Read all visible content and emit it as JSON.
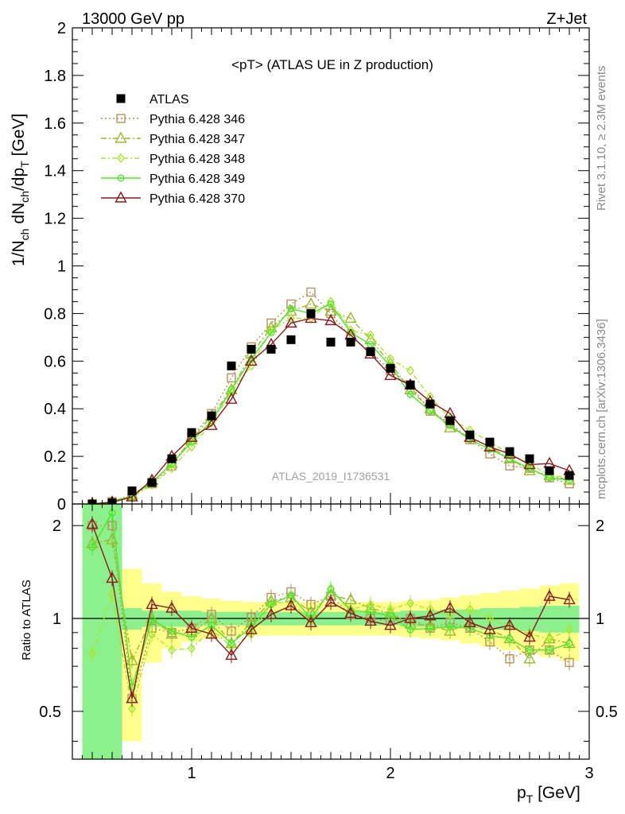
{
  "header": {
    "left": "13000 GeV pp",
    "right": "Z+Jet"
  },
  "side_text": {
    "top": "Rivet 3.1.10, ≥ 2.3M events",
    "bottom": "mcplots.cern.ch [arXiv:1306.3436]"
  },
  "chart_data": {
    "type": "line",
    "title": "<pT> (ATLAS UE in Z production)",
    "analysis_label": "ATLAS_2019_I1736531",
    "ylabel_main": "1/N_ch dN_ch/dp_T [GeV]",
    "ylabel_ratio": "Ratio to ATLAS",
    "xlabel": "p_T [GeV]",
    "xlim": [
      0.4,
      3.0
    ],
    "ylim": [
      0,
      2
    ],
    "ratio_ylim": [
      0.35,
      2.35
    ],
    "ratio_log": true,
    "xticks": [
      "1",
      "2",
      "3"
    ],
    "yticks_main": [
      "0",
      "0.2",
      "0.4",
      "0.6",
      "0.8",
      "1",
      "1.2",
      "1.4",
      "1.6",
      "1.8",
      "2"
    ],
    "yticks_ratio": [
      "0.5",
      "1",
      "2"
    ],
    "legend_placement": "top-left",
    "x": [
      0.5,
      0.6,
      0.7,
      0.8,
      0.9,
      1.0,
      1.1,
      1.2,
      1.3,
      1.4,
      1.5,
      1.6,
      1.7,
      1.8,
      1.9,
      2.0,
      2.1,
      2.2,
      2.3,
      2.4,
      2.5,
      2.6,
      2.7,
      2.8,
      2.9
    ],
    "data": {
      "name": "ATLAS",
      "color": "#000000",
      "values": [
        0.0,
        0.005,
        0.055,
        0.09,
        0.19,
        0.3,
        0.37,
        0.58,
        0.65,
        0.65,
        0.69,
        0.8,
        0.68,
        0.68,
        0.64,
        0.57,
        0.5,
        0.42,
        0.35,
        0.29,
        0.26,
        0.22,
        0.19,
        0.14,
        0.12
      ]
    },
    "series": [
      {
        "name": "Pythia 6.428 346",
        "color": "#b8915c",
        "marker": "open-square",
        "dash": "2,3",
        "values": [
          0.0,
          0.01,
          0.035,
          0.085,
          0.16,
          0.28,
          0.38,
          0.53,
          0.66,
          0.76,
          0.84,
          0.89,
          0.8,
          0.7,
          0.64,
          0.56,
          0.5,
          0.39,
          0.34,
          0.27,
          0.21,
          0.16,
          0.15,
          0.11,
          0.085
        ]
      },
      {
        "name": "Pythia 6.428 347",
        "color": "#9cb82a",
        "marker": "open-triangle",
        "dash": "7,3,2,3",
        "values": [
          0.0,
          0.009,
          0.04,
          0.09,
          0.17,
          0.27,
          0.37,
          0.48,
          0.63,
          0.74,
          0.81,
          0.84,
          0.81,
          0.78,
          0.69,
          0.59,
          0.48,
          0.4,
          0.32,
          0.28,
          0.24,
          0.19,
          0.14,
          0.12,
          0.1
        ]
      },
      {
        "name": "Pythia 6.428 348",
        "color": "#a6e82a",
        "marker": "open-diamond",
        "dash": "6,3,2,3",
        "values": [
          0.0,
          0.006,
          0.028,
          0.08,
          0.15,
          0.24,
          0.34,
          0.47,
          0.58,
          0.73,
          0.78,
          0.78,
          0.85,
          0.73,
          0.71,
          0.61,
          0.56,
          0.45,
          0.36,
          0.31,
          0.26,
          0.21,
          0.17,
          0.12,
          0.11
        ]
      },
      {
        "name": "Pythia 6.428 349",
        "color": "#4ee82a",
        "marker": "open-circle",
        "dash": "",
        "values": [
          0.0,
          0.01,
          0.033,
          0.09,
          0.17,
          0.26,
          0.35,
          0.48,
          0.61,
          0.72,
          0.82,
          0.8,
          0.84,
          0.72,
          0.67,
          0.58,
          0.46,
          0.39,
          0.33,
          0.27,
          0.23,
          0.19,
          0.15,
          0.11,
          0.1
        ]
      },
      {
        "name": "Pythia 6.428 370",
        "color": "#8b1a1a",
        "marker": "open-triangle",
        "dash": "",
        "values": [
          0.0,
          0.007,
          0.03,
          0.1,
          0.2,
          0.28,
          0.33,
          0.44,
          0.6,
          0.67,
          0.76,
          0.78,
          0.77,
          0.71,
          0.63,
          0.54,
          0.5,
          0.43,
          0.38,
          0.28,
          0.24,
          0.21,
          0.165,
          0.17,
          0.14
        ]
      }
    ],
    "ratios": [
      [
        2.0,
        2.0,
        0.55,
        0.93,
        0.9,
        0.93,
        1.03,
        0.91,
        1.01,
        1.17,
        1.22,
        1.11,
        1.18,
        1.03,
        1.0,
        0.98,
        1.0,
        0.93,
        0.97,
        0.93,
        0.84,
        0.74,
        0.79,
        0.79,
        0.72
      ],
      [
        1.75,
        1.8,
        0.73,
        1.0,
        0.89,
        0.9,
        1.0,
        0.83,
        0.97,
        1.14,
        1.17,
        1.05,
        1.19,
        1.15,
        1.08,
        1.04,
        0.96,
        0.95,
        0.91,
        0.97,
        0.92,
        0.86,
        0.74,
        0.86,
        0.83
      ],
      [
        0.77,
        1.2,
        0.51,
        0.89,
        0.79,
        0.8,
        0.92,
        0.81,
        0.89,
        1.12,
        1.13,
        0.98,
        1.25,
        1.07,
        1.11,
        1.07,
        1.12,
        1.07,
        1.03,
        1.07,
        1.0,
        0.95,
        0.89,
        0.86,
        0.92
      ],
      [
        1.7,
        2.2,
        0.6,
        0.99,
        0.91,
        0.87,
        0.95,
        0.83,
        0.94,
        1.11,
        1.19,
        1.0,
        1.24,
        1.06,
        1.05,
        1.02,
        0.92,
        0.93,
        0.94,
        0.93,
        0.88,
        0.86,
        0.79,
        0.79,
        0.83
      ],
      [
        2.02,
        1.35,
        0.55,
        1.11,
        1.08,
        0.93,
        0.89,
        0.76,
        0.92,
        1.03,
        1.1,
        0.97,
        1.13,
        1.04,
        0.98,
        0.95,
        1.0,
        1.02,
        1.08,
        0.97,
        0.92,
        0.95,
        0.87,
        1.18,
        1.15
      ]
    ],
    "band_x_edges": [
      0.45,
      0.55,
      0.65,
      0.75,
      0.85,
      0.95,
      1.05,
      1.15,
      1.25,
      1.35,
      1.45,
      1.55,
      1.65,
      1.75,
      1.85,
      1.95,
      2.05,
      2.15,
      2.25,
      2.35,
      2.45,
      2.55,
      2.65,
      2.75,
      2.85,
      2.95
    ],
    "band_stat": [
      2.35,
      2.35,
      1.08,
      1.06,
      1.06,
      1.06,
      1.05,
      1.05,
      1.05,
      1.05,
      1.05,
      1.05,
      1.05,
      1.05,
      1.05,
      1.05,
      1.06,
      1.06,
      1.07,
      1.07,
      1.08,
      1.08,
      1.09,
      1.1,
      1.1
    ],
    "band_stat_low": [
      0.35,
      0.35,
      0.92,
      0.94,
      0.94,
      0.94,
      0.95,
      0.95,
      0.95,
      0.95,
      0.95,
      0.95,
      0.95,
      0.95,
      0.95,
      0.95,
      0.94,
      0.94,
      0.93,
      0.93,
      0.92,
      0.92,
      0.91,
      0.9,
      0.9
    ],
    "band_total": [
      2.35,
      2.35,
      1.45,
      1.3,
      1.22,
      1.18,
      1.16,
      1.14,
      1.13,
      1.13,
      1.13,
      1.13,
      1.13,
      1.13,
      1.13,
      1.13,
      1.14,
      1.15,
      1.17,
      1.19,
      1.21,
      1.23,
      1.25,
      1.28,
      1.3
    ],
    "band_total_low": [
      0.35,
      0.35,
      0.4,
      0.72,
      0.8,
      0.84,
      0.86,
      0.87,
      0.88,
      0.88,
      0.88,
      0.88,
      0.88,
      0.88,
      0.88,
      0.88,
      0.87,
      0.86,
      0.85,
      0.83,
      0.81,
      0.79,
      0.77,
      0.75,
      0.73
    ]
  }
}
